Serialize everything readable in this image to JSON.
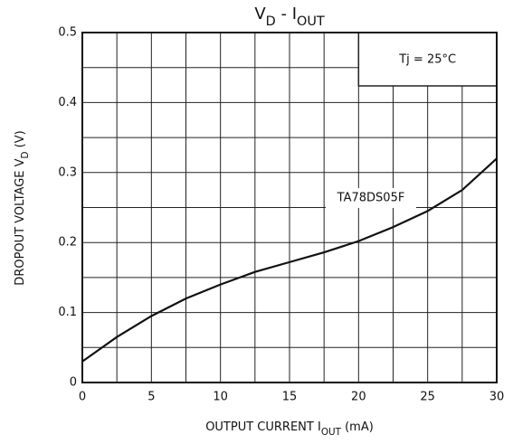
{
  "chart_data": {
    "type": "line",
    "title_segments": [
      {
        "text": "V"
      },
      {
        "text": "D",
        "sub": true
      },
      {
        "text": " - I"
      },
      {
        "text": "OUT",
        "sub": true
      }
    ],
    "y_label_segments": [
      {
        "text": "DROPOUT VOLTAGE   V"
      },
      {
        "text": "D",
        "sub": true
      },
      {
        "text": "   (V)"
      }
    ],
    "x_label_segments": [
      {
        "text": "OUTPUT CURRENT   I"
      },
      {
        "text": "OUT",
        "sub": true
      },
      {
        "text": "   (mA)"
      }
    ],
    "condition": "Tj = 25°C",
    "series": [
      {
        "name": "TA78DS05F",
        "color": "#111111",
        "values": [
          0.03,
          0.065,
          0.095,
          0.12,
          0.14,
          0.158,
          0.172,
          0.186,
          0.202,
          0.222,
          0.245,
          0.275,
          0.32
        ]
      }
    ],
    "x": [
      0,
      2.5,
      5,
      7.5,
      10,
      12.5,
      15,
      17.5,
      20,
      22.5,
      25,
      27.5,
      30
    ],
    "xlim": [
      0,
      30
    ],
    "ylim": [
      0,
      0.5
    ],
    "xticks": [
      0,
      5,
      10,
      15,
      20,
      25,
      30
    ],
    "yticks": [
      0,
      0.1,
      0.2,
      0.3,
      0.4,
      0.5
    ],
    "x_minor_ticks": [
      2.5,
      7.5,
      12.5,
      17.5,
      22.5,
      27.5
    ],
    "y_minor_ticks": [
      0.05,
      0.15,
      0.25,
      0.35,
      0.45
    ],
    "grid": true
  }
}
